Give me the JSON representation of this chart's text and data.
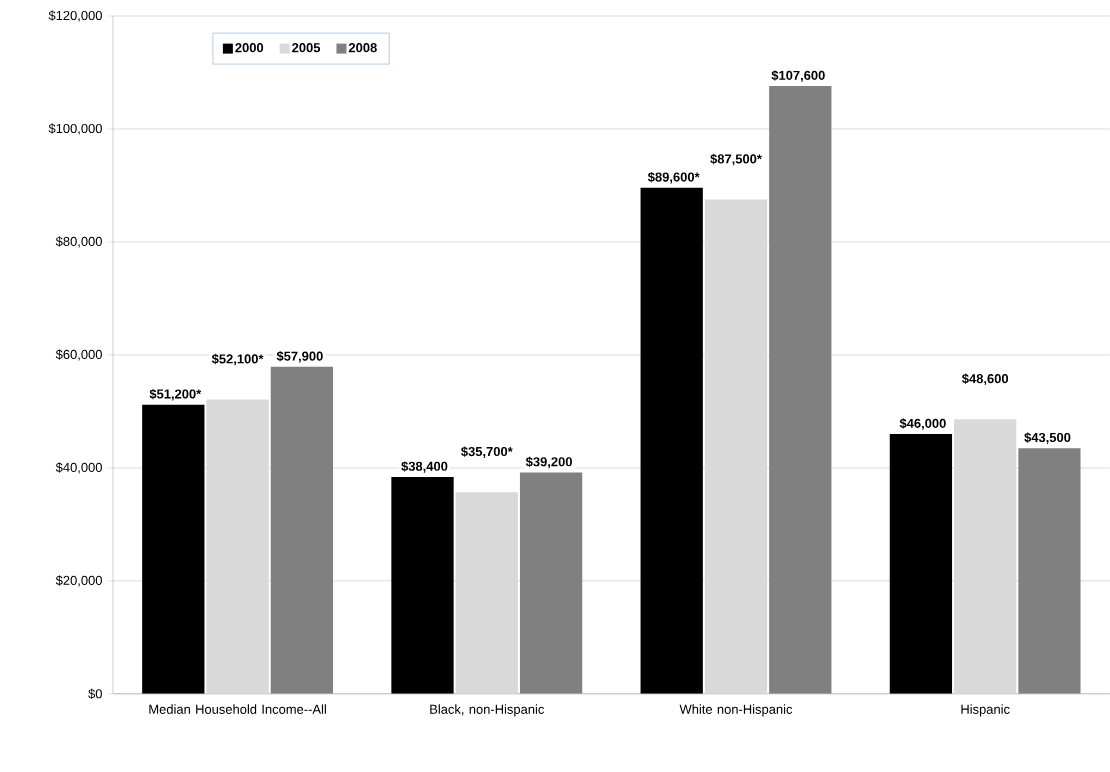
{
  "chart_data": {
    "type": "bar",
    "categories": [
      "Median Household Income--All",
      "Black, non-Hispanic",
      "White non-Hispanic",
      "Hispanic"
    ],
    "series": [
      {
        "name": "2000",
        "color": "#000000",
        "values": [
          51200,
          38400,
          89600,
          46000
        ],
        "value_labels": [
          "$51,200*",
          "$38,400",
          "$89,600*",
          "$46,000"
        ]
      },
      {
        "name": "2005",
        "color": "#d9d9d9",
        "values": [
          52100,
          35700,
          87500,
          48600
        ],
        "value_labels": [
          "$52,100*",
          "$35,700*",
          "$87,500*",
          "$48,600"
        ]
      },
      {
        "name": "2008",
        "color": "#808080",
        "values": [
          57900,
          39200,
          107600,
          43500
        ],
        "value_labels": [
          "$57,900",
          "$39,200",
          "$107,600",
          "$43,500"
        ]
      }
    ],
    "ylim": [
      0,
      120000
    ],
    "yticks": [
      {
        "value": 0,
        "label": "$0"
      },
      {
        "value": 20000,
        "label": "$20,000"
      },
      {
        "value": 40000,
        "label": "$40,000"
      },
      {
        "value": 60000,
        "label": "$60,000"
      },
      {
        "value": 80000,
        "label": "$80,000"
      },
      {
        "value": 100000,
        "label": "$100,000"
      },
      {
        "value": 120000,
        "label": "$120,000"
      }
    ],
    "grid": "y",
    "legend": "top left"
  }
}
